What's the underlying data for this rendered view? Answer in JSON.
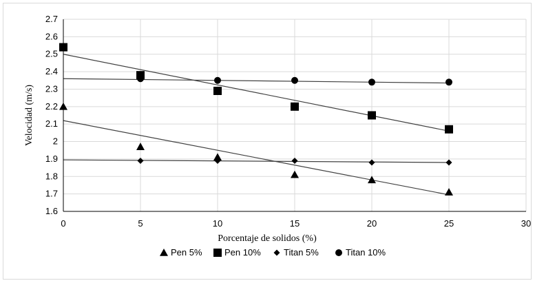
{
  "chart_data": {
    "type": "scatter",
    "title": "",
    "xlabel": "Porcentaje de solidos (%)",
    "ylabel": "Velocidad (m/s)",
    "xlim": [
      0,
      30
    ],
    "ylim": [
      1.6,
      2.7
    ],
    "xticks": [
      "0",
      "5",
      "10",
      "15",
      "20",
      "25",
      "30"
    ],
    "yticks": [
      "1.6",
      "1.7",
      "1.8",
      "1.9",
      "2",
      "2.1",
      "2.2",
      "2.3",
      "2.4",
      "2.5",
      "2.6",
      "2.7"
    ],
    "grid": true,
    "legend_position": "bottom",
    "series": [
      {
        "name": "Pen 5%",
        "marker": "triangle",
        "x": [
          0,
          5,
          10,
          15,
          20,
          25
        ],
        "y": [
          2.2,
          1.97,
          1.91,
          1.81,
          1.78,
          1.71
        ],
        "trendline": [
          [
            0,
            2.12
          ],
          [
            25,
            1.695
          ]
        ]
      },
      {
        "name": "Pen 10%",
        "marker": "square",
        "x": [
          0,
          5,
          10,
          15,
          20,
          25
        ],
        "y": [
          2.54,
          2.38,
          2.29,
          2.2,
          2.15,
          2.07
        ],
        "trendline": [
          [
            0,
            2.5
          ],
          [
            25,
            2.06
          ]
        ]
      },
      {
        "name": "Titan 5%",
        "marker": "diamond",
        "x": [
          5,
          10,
          15,
          20,
          25
        ],
        "y": [
          1.89,
          1.89,
          1.89,
          1.88,
          1.88
        ],
        "trendline": [
          [
            0,
            1.895
          ],
          [
            25,
            1.88
          ]
        ]
      },
      {
        "name": "Titan 10%",
        "marker": "circle",
        "x": [
          5,
          10,
          15,
          20,
          25
        ],
        "y": [
          2.36,
          2.35,
          2.35,
          2.34,
          2.34
        ],
        "trendline": [
          [
            0,
            2.36
          ],
          [
            25,
            2.335
          ]
        ]
      }
    ],
    "colors": {
      "marker": "#000000",
      "grid": "#d9d9d9",
      "trendline": "#404040",
      "axis": "#000000"
    }
  }
}
